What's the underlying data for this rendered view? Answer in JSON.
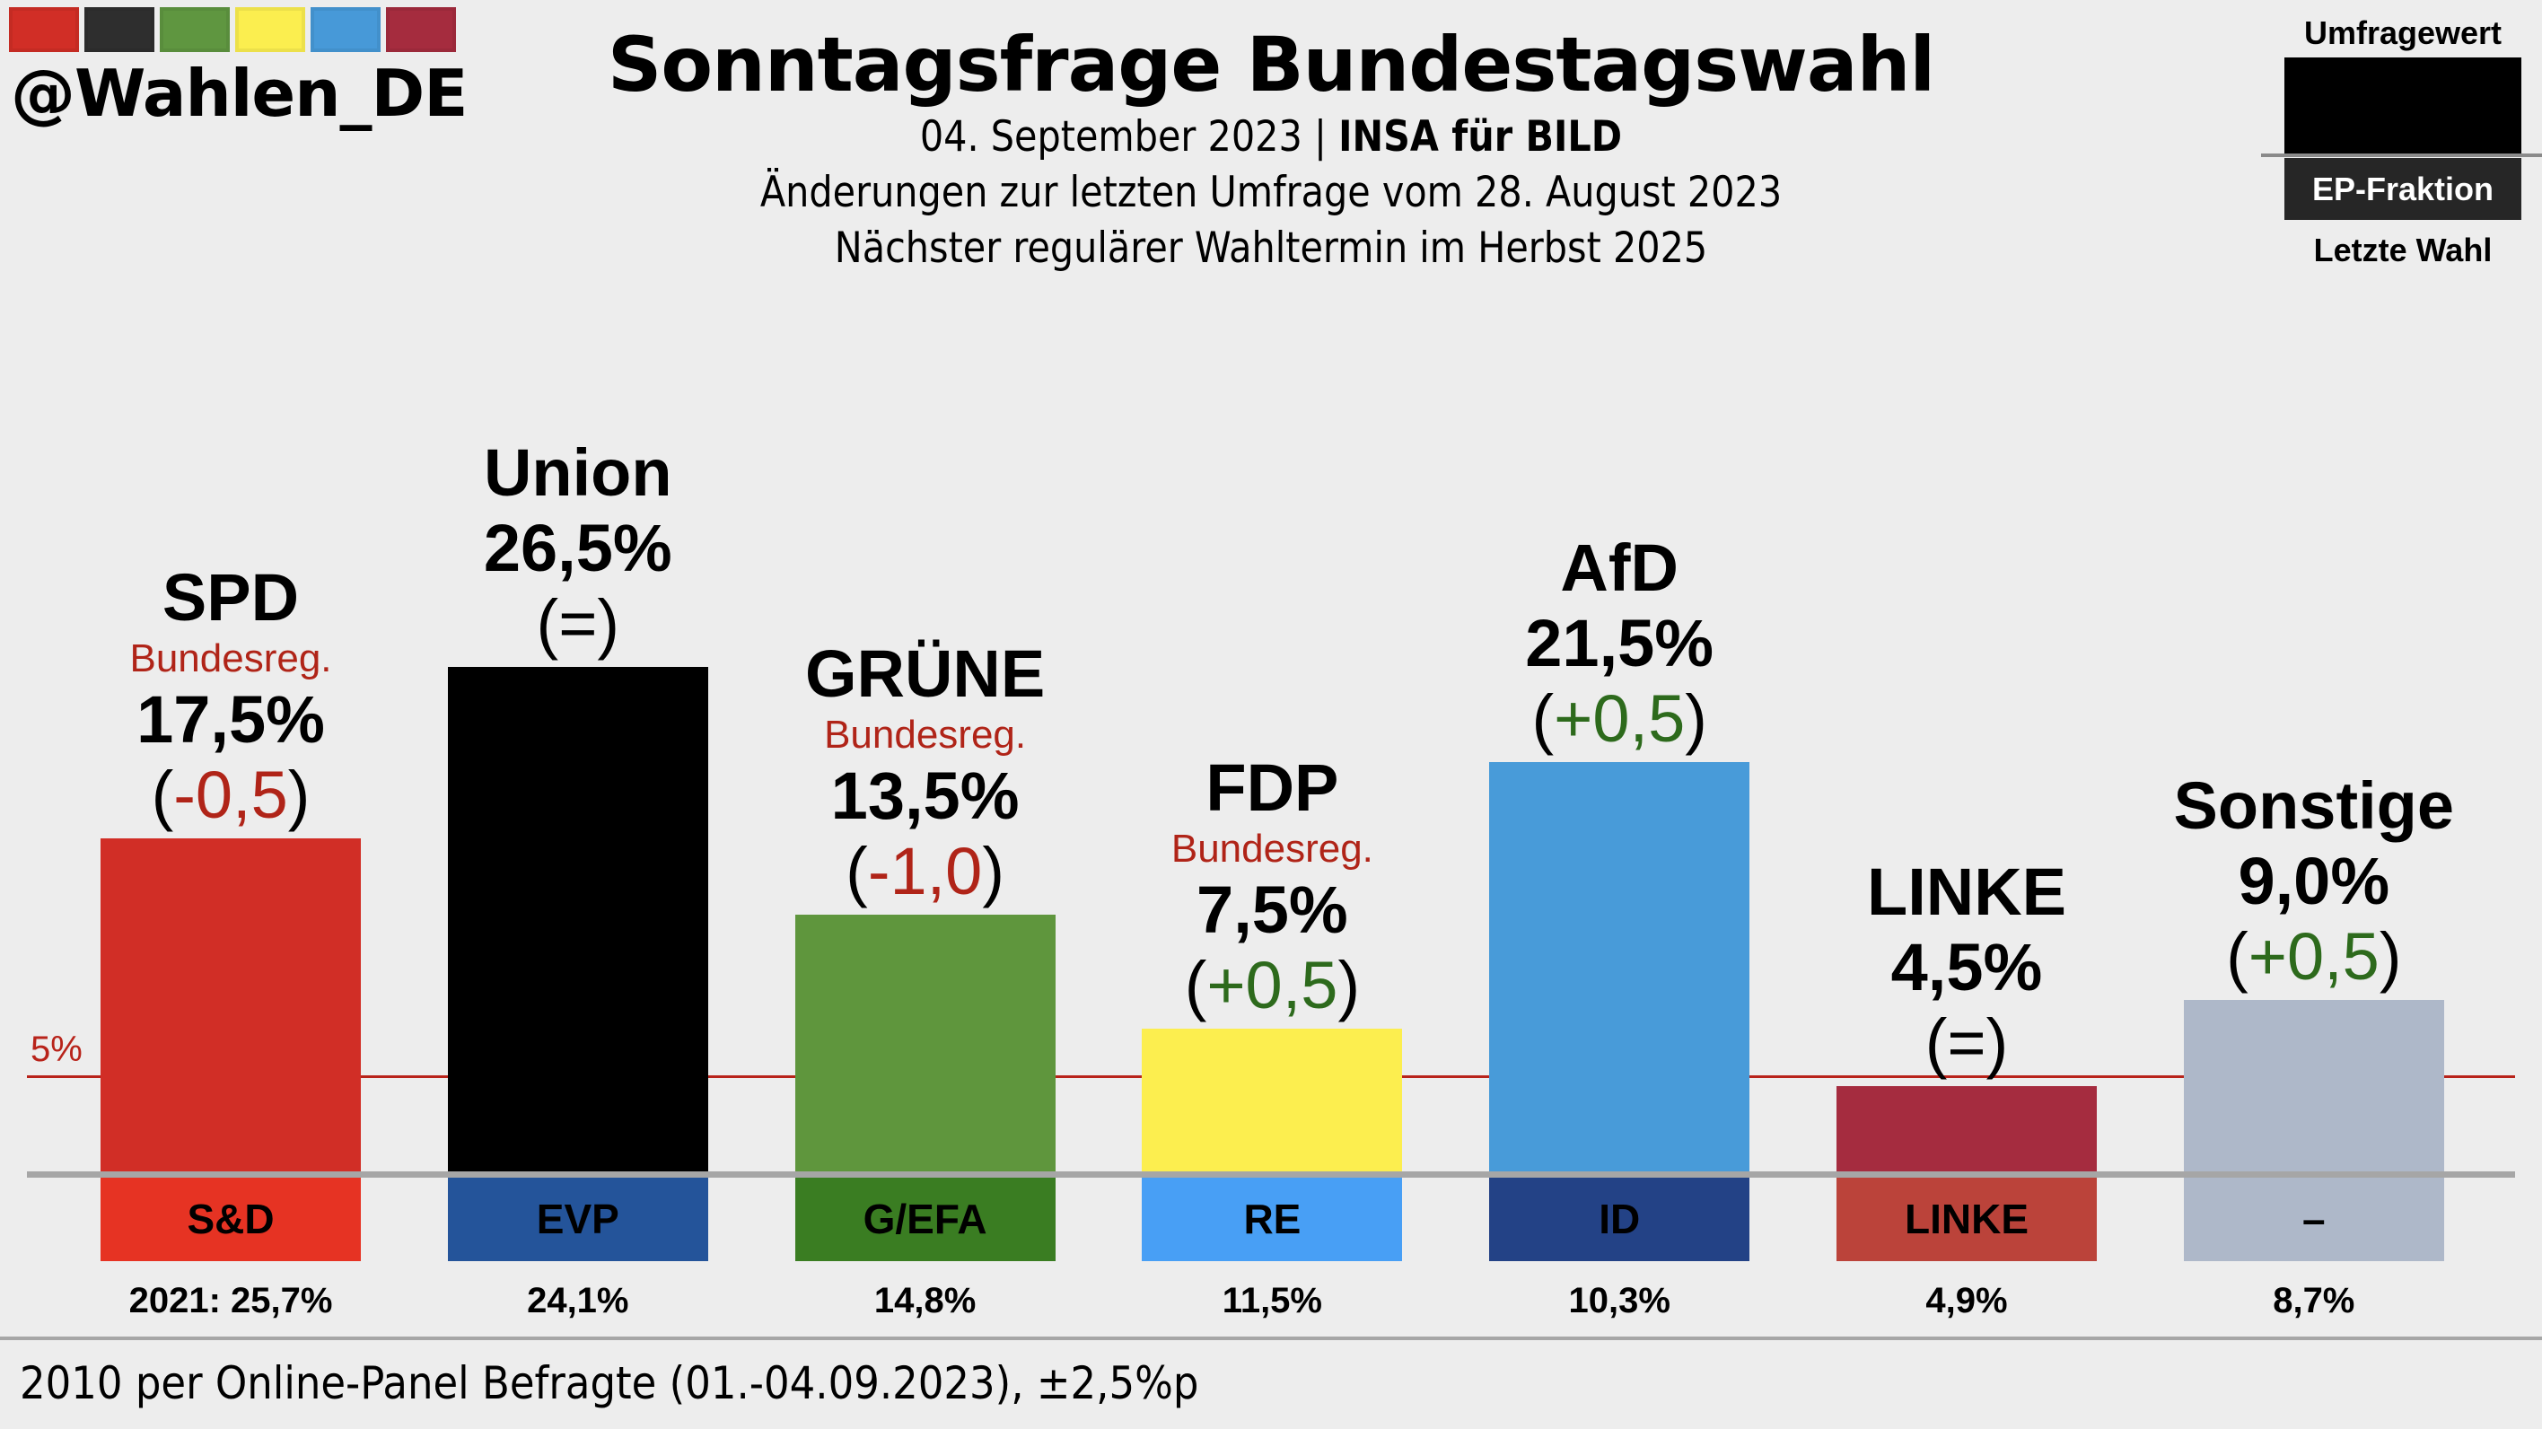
{
  "brand": {
    "handle": "@Wahlen_DE",
    "logo_colors": [
      "#d12e26",
      "#2e2e2e",
      "#5f9640",
      "#fbee4f",
      "#4799d8",
      "#a52c3e"
    ]
  },
  "header": {
    "title": "Sonntagsfrage Bundestagswahl",
    "date": "04. September 2023",
    "separator": "|",
    "institute": "INSA für BILD",
    "changes_note": "Änderungen zur letzten Umfrage vom 28. August 2023",
    "next_election": "Nächster regulärer Wahltermin im Herbst 2025"
  },
  "legend": {
    "top": "Umfragewert",
    "middle": "EP-Fraktion",
    "bottom": "Letzte Wahl"
  },
  "footer": {
    "text": "2010 per Online-Panel Befragte (01.-04.09.2023), ±2,5%p"
  },
  "chart_data": {
    "type": "bar",
    "title": "Sonntagsfrage Bundestagswahl",
    "xlabel": "",
    "ylabel": "",
    "ylim": [
      0,
      28
    ],
    "grid": false,
    "threshold": {
      "value": 5,
      "label": "5%",
      "color": "#b8231a"
    },
    "legend": "top-right",
    "categories": [
      "SPD",
      "Union",
      "GRÜNE",
      "FDP",
      "AfD",
      "LINKE",
      "Sonstige"
    ],
    "values": [
      17.5,
      26.5,
      13.5,
      7.5,
      21.5,
      4.5,
      9.0
    ],
    "parties": [
      {
        "name": "SPD",
        "value": 17.5,
        "value_label": "17,5%",
        "change_label": "-0,5",
        "change_dir": "neg",
        "government": "Bundesreg.",
        "color": "#d12e26",
        "ep_group": "S&D",
        "ep_color": "#e63323",
        "last_label": "2021: 25,7%",
        "last_value": 25.7
      },
      {
        "name": "Union",
        "value": 26.5,
        "value_label": "26,5%",
        "change_label": "=",
        "change_dir": "eq",
        "government": "",
        "color": "#000000",
        "ep_group": "EVP",
        "ep_color": "#24549a",
        "last_label": "24,1%",
        "last_value": 24.1
      },
      {
        "name": "GRÜNE",
        "value": 13.5,
        "value_label": "13,5%",
        "change_label": "-1,0",
        "change_dir": "neg",
        "government": "Bundesreg.",
        "color": "#5f963d",
        "ep_group": "G/EFA",
        "ep_color": "#3a7d22",
        "last_label": "14,8%",
        "last_value": 14.8
      },
      {
        "name": "FDP",
        "value": 7.5,
        "value_label": "7,5%",
        "change_label": "+0,5",
        "change_dir": "pos",
        "government": "Bundesreg.",
        "color": "#fcee4f",
        "ep_group": "RE",
        "ep_color": "#489ff5",
        "last_label": "11,5%",
        "last_value": 11.5
      },
      {
        "name": "AfD",
        "value": 21.5,
        "value_label": "21,5%",
        "change_label": "+0,5",
        "change_dir": "pos",
        "government": "",
        "color": "#489bd9",
        "ep_group": "ID",
        "ep_color": "#234286",
        "last_label": "10,3%",
        "last_value": 10.3
      },
      {
        "name": "LINKE",
        "value": 4.5,
        "value_label": "4,5%",
        "change_label": "=",
        "change_dir": "eq",
        "government": "",
        "color": "#a52c3f",
        "ep_group": "LINKE",
        "ep_color": "#bb433a",
        "last_label": "4,9%",
        "last_value": 4.9
      },
      {
        "name": "Sonstige",
        "value": 9.0,
        "value_label": "9,0%",
        "change_label": "+0,5",
        "change_dir": "pos",
        "government": "",
        "color": "#aeb8c9",
        "ep_group": "–",
        "ep_color": "#aeb8c9",
        "last_label": "8,7%",
        "last_value": 8.7
      }
    ]
  }
}
